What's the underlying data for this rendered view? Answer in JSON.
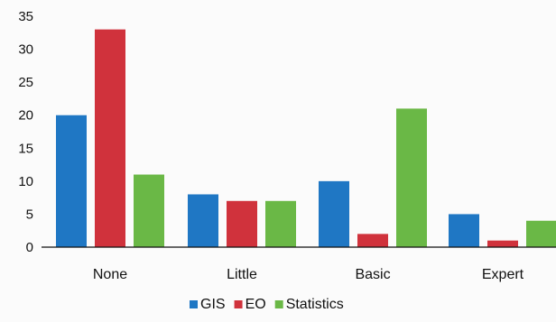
{
  "chart_data": {
    "type": "bar",
    "categories": [
      "None",
      "Little",
      "Basic",
      "Expert"
    ],
    "series": [
      {
        "name": "GIS",
        "values": [
          20,
          8,
          10,
          5
        ],
        "color": "#1f77c4"
      },
      {
        "name": "EO",
        "values": [
          33,
          7,
          2,
          1
        ],
        "color": "#d0323c"
      },
      {
        "name": "Statistics",
        "values": [
          11,
          7,
          21,
          4
        ],
        "color": "#6ab846"
      }
    ],
    "ylim": [
      0,
      35
    ],
    "yticks": [
      0,
      5,
      10,
      15,
      20,
      25,
      30,
      35
    ],
    "grid": false,
    "legend": "bottom",
    "title": "",
    "xlabel": "",
    "ylabel": ""
  }
}
